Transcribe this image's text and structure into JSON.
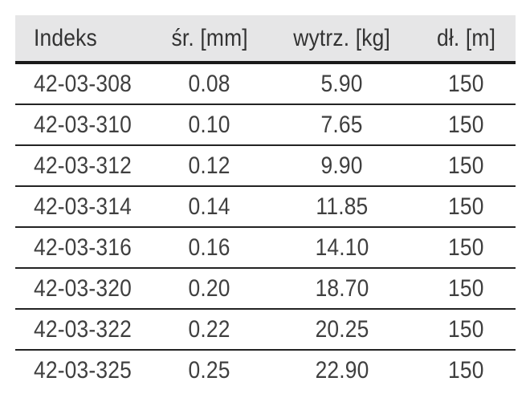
{
  "title": "Product specification table",
  "colors": {
    "page_bg": "#ffffff",
    "header_bg": "#e6e6e7",
    "rule_heavy": "#1a1a1a",
    "rule_light": "#232323",
    "header_text": "#333333",
    "cell_text": "#3f3f3f"
  },
  "chart_data": {
    "type": "table",
    "columns": [
      "Indeks",
      "śr. [mm]",
      "wytrz. [kg]",
      "dł. [m]"
    ],
    "rows": [
      [
        "42-03-308",
        "0.08",
        "5.90",
        "150"
      ],
      [
        "42-03-310",
        "0.10",
        "7.65",
        "150"
      ],
      [
        "42-03-312",
        "0.12",
        "9.90",
        "150"
      ],
      [
        "42-03-314",
        "0.14",
        "11.85",
        "150"
      ],
      [
        "42-03-316",
        "0.16",
        "14.10",
        "150"
      ],
      [
        "42-03-320",
        "0.20",
        "18.70",
        "150"
      ],
      [
        "42-03-322",
        "0.22",
        "20.25",
        "150"
      ],
      [
        "42-03-325",
        "0.25",
        "22.90",
        "150"
      ]
    ],
    "layout": {
      "grid": "horizontal-rules-only",
      "header_rule": "heavy",
      "row_rule": "light",
      "outer_border": "none",
      "col_align": [
        "left",
        "center",
        "center",
        "center"
      ]
    }
  }
}
